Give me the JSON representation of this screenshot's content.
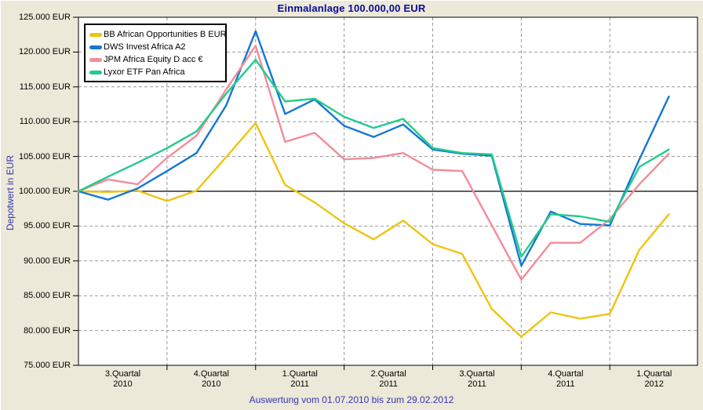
{
  "title": "Einmalanlage 100.000,00 EUR",
  "caption": "Auswertung vom 01.07.2010 bis zum 29.02.2012",
  "colors": {
    "background": "#ECE9D8",
    "plot_background": "#FFFFFF",
    "axis": "#000000",
    "grid": "#999999",
    "title_text": "#0A0A96",
    "caption_text": "#3434B8"
  },
  "chart_data": {
    "type": "line",
    "title": "Einmalanlage 100.000,00 EUR",
    "xlabel": "",
    "ylabel": "Depotwert in EUR",
    "ylim": [
      75000,
      125000
    ],
    "ytick_step": 5000,
    "ytick_suffix": " EUR",
    "baseline": 100000,
    "grid": true,
    "legend_position": "top-left",
    "period_start": "01.07.2010",
    "period_end": "29.02.2012",
    "x": [
      "2010-07-01",
      "2010-07-31",
      "2010-08-31",
      "2010-09-30",
      "2010-10-31",
      "2010-11-30",
      "2010-12-31",
      "2011-01-31",
      "2011-02-28",
      "2011-03-31",
      "2011-04-30",
      "2011-05-31",
      "2011-06-30",
      "2011-07-31",
      "2011-08-31",
      "2011-09-30",
      "2011-10-31",
      "2011-11-30",
      "2011-12-31",
      "2012-01-31",
      "2012-02-29"
    ],
    "quarter_tick_months": [
      3,
      6,
      9,
      12,
      15,
      18
    ],
    "quarter_labels": [
      [
        "3.Quartal",
        "2010"
      ],
      [
        "4.Quartal",
        "2010"
      ],
      [
        "1.Quartal",
        "2011"
      ],
      [
        "2.Quartal",
        "2011"
      ],
      [
        "3.Quartal",
        "2011"
      ],
      [
        "4.Quartal",
        "2011"
      ],
      [
        "1.Quartal",
        "2012"
      ]
    ],
    "series": [
      {
        "name": "BB African Opportunities B EUR",
        "color": "#EEC40E",
        "values": [
          100000,
          99900,
          100100,
          98600,
          100100,
          104900,
          109800,
          100900,
          98400,
          95400,
          93100,
          95800,
          92400,
          91000,
          83100,
          79100,
          82600,
          81700,
          82400,
          91600,
          96700
        ]
      },
      {
        "name": "DWS Invest Africa A2",
        "color": "#1478D2",
        "values": [
          100000,
          98800,
          100400,
          102900,
          105500,
          112300,
          123000,
          111100,
          113200,
          109400,
          107800,
          109600,
          106000,
          105400,
          105100,
          89300,
          97100,
          95300,
          95100,
          104600,
          113600
        ]
      },
      {
        "name": "JPM Africa Equity D acc €",
        "color": "#F28C9A",
        "values": [
          100000,
          101700,
          101000,
          104800,
          108000,
          114600,
          120900,
          107100,
          108400,
          104600,
          104800,
          105500,
          103100,
          102900,
          95100,
          87300,
          92600,
          92600,
          96000,
          101000,
          105400
        ]
      },
      {
        "name": "Lyxor ETF Pan Africa",
        "color": "#22CC8C",
        "values": [
          100000,
          102100,
          104100,
          106200,
          108600,
          114000,
          118900,
          112900,
          113300,
          110700,
          109100,
          110400,
          106200,
          105500,
          105300,
          90600,
          96700,
          96400,
          95600,
          103500,
          106000
        ]
      }
    ]
  }
}
